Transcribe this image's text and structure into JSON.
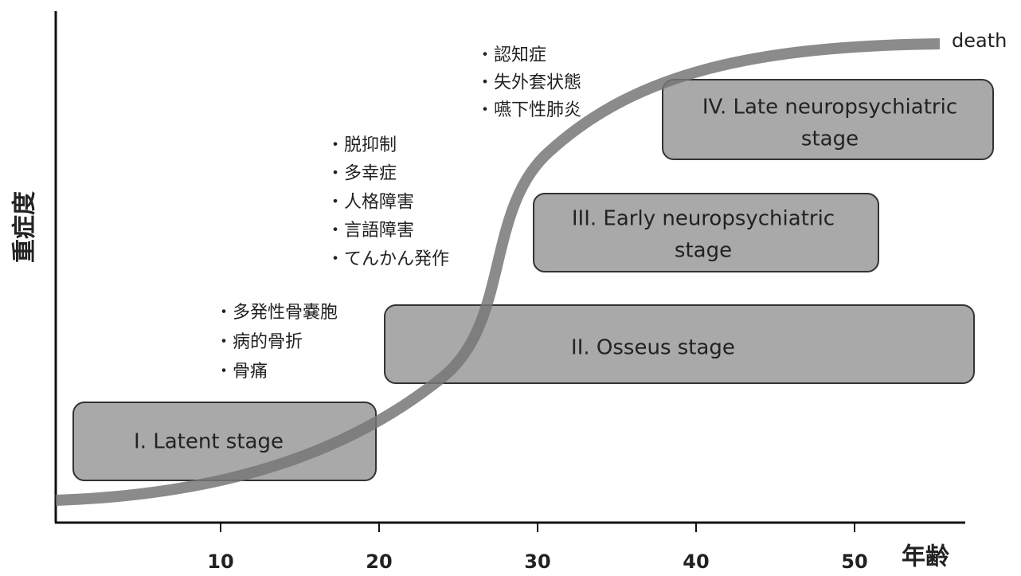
{
  "y_axis_label": "重症度",
  "x_axis_label": "年齢",
  "xlim": [
    0,
    57
  ],
  "xticks": [
    10,
    20,
    30,
    40,
    50
  ],
  "curve_end_label": "death",
  "stages": [
    {
      "lines": [
        "I. Latent stage"
      ]
    },
    {
      "lines": [
        "II. Osseus stage"
      ]
    },
    {
      "lines": [
        "III. Early neuropsychiatric",
        "stage"
      ]
    },
    {
      "lines": [
        "IV. Late neuropsychiatric",
        "stage"
      ]
    }
  ],
  "symptom_groups": [
    {
      "items": [
        "・多発性骨嚢胞",
        "・病的骨折",
        "・骨痛"
      ]
    },
    {
      "items": [
        "・脱抑制",
        "・多幸症",
        "・人格障害",
        "・言語障害",
        "・てんかん発作"
      ]
    },
    {
      "items": [
        "・認知症",
        "・失外套状態",
        "・嚥下性肺炎"
      ]
    }
  ]
}
